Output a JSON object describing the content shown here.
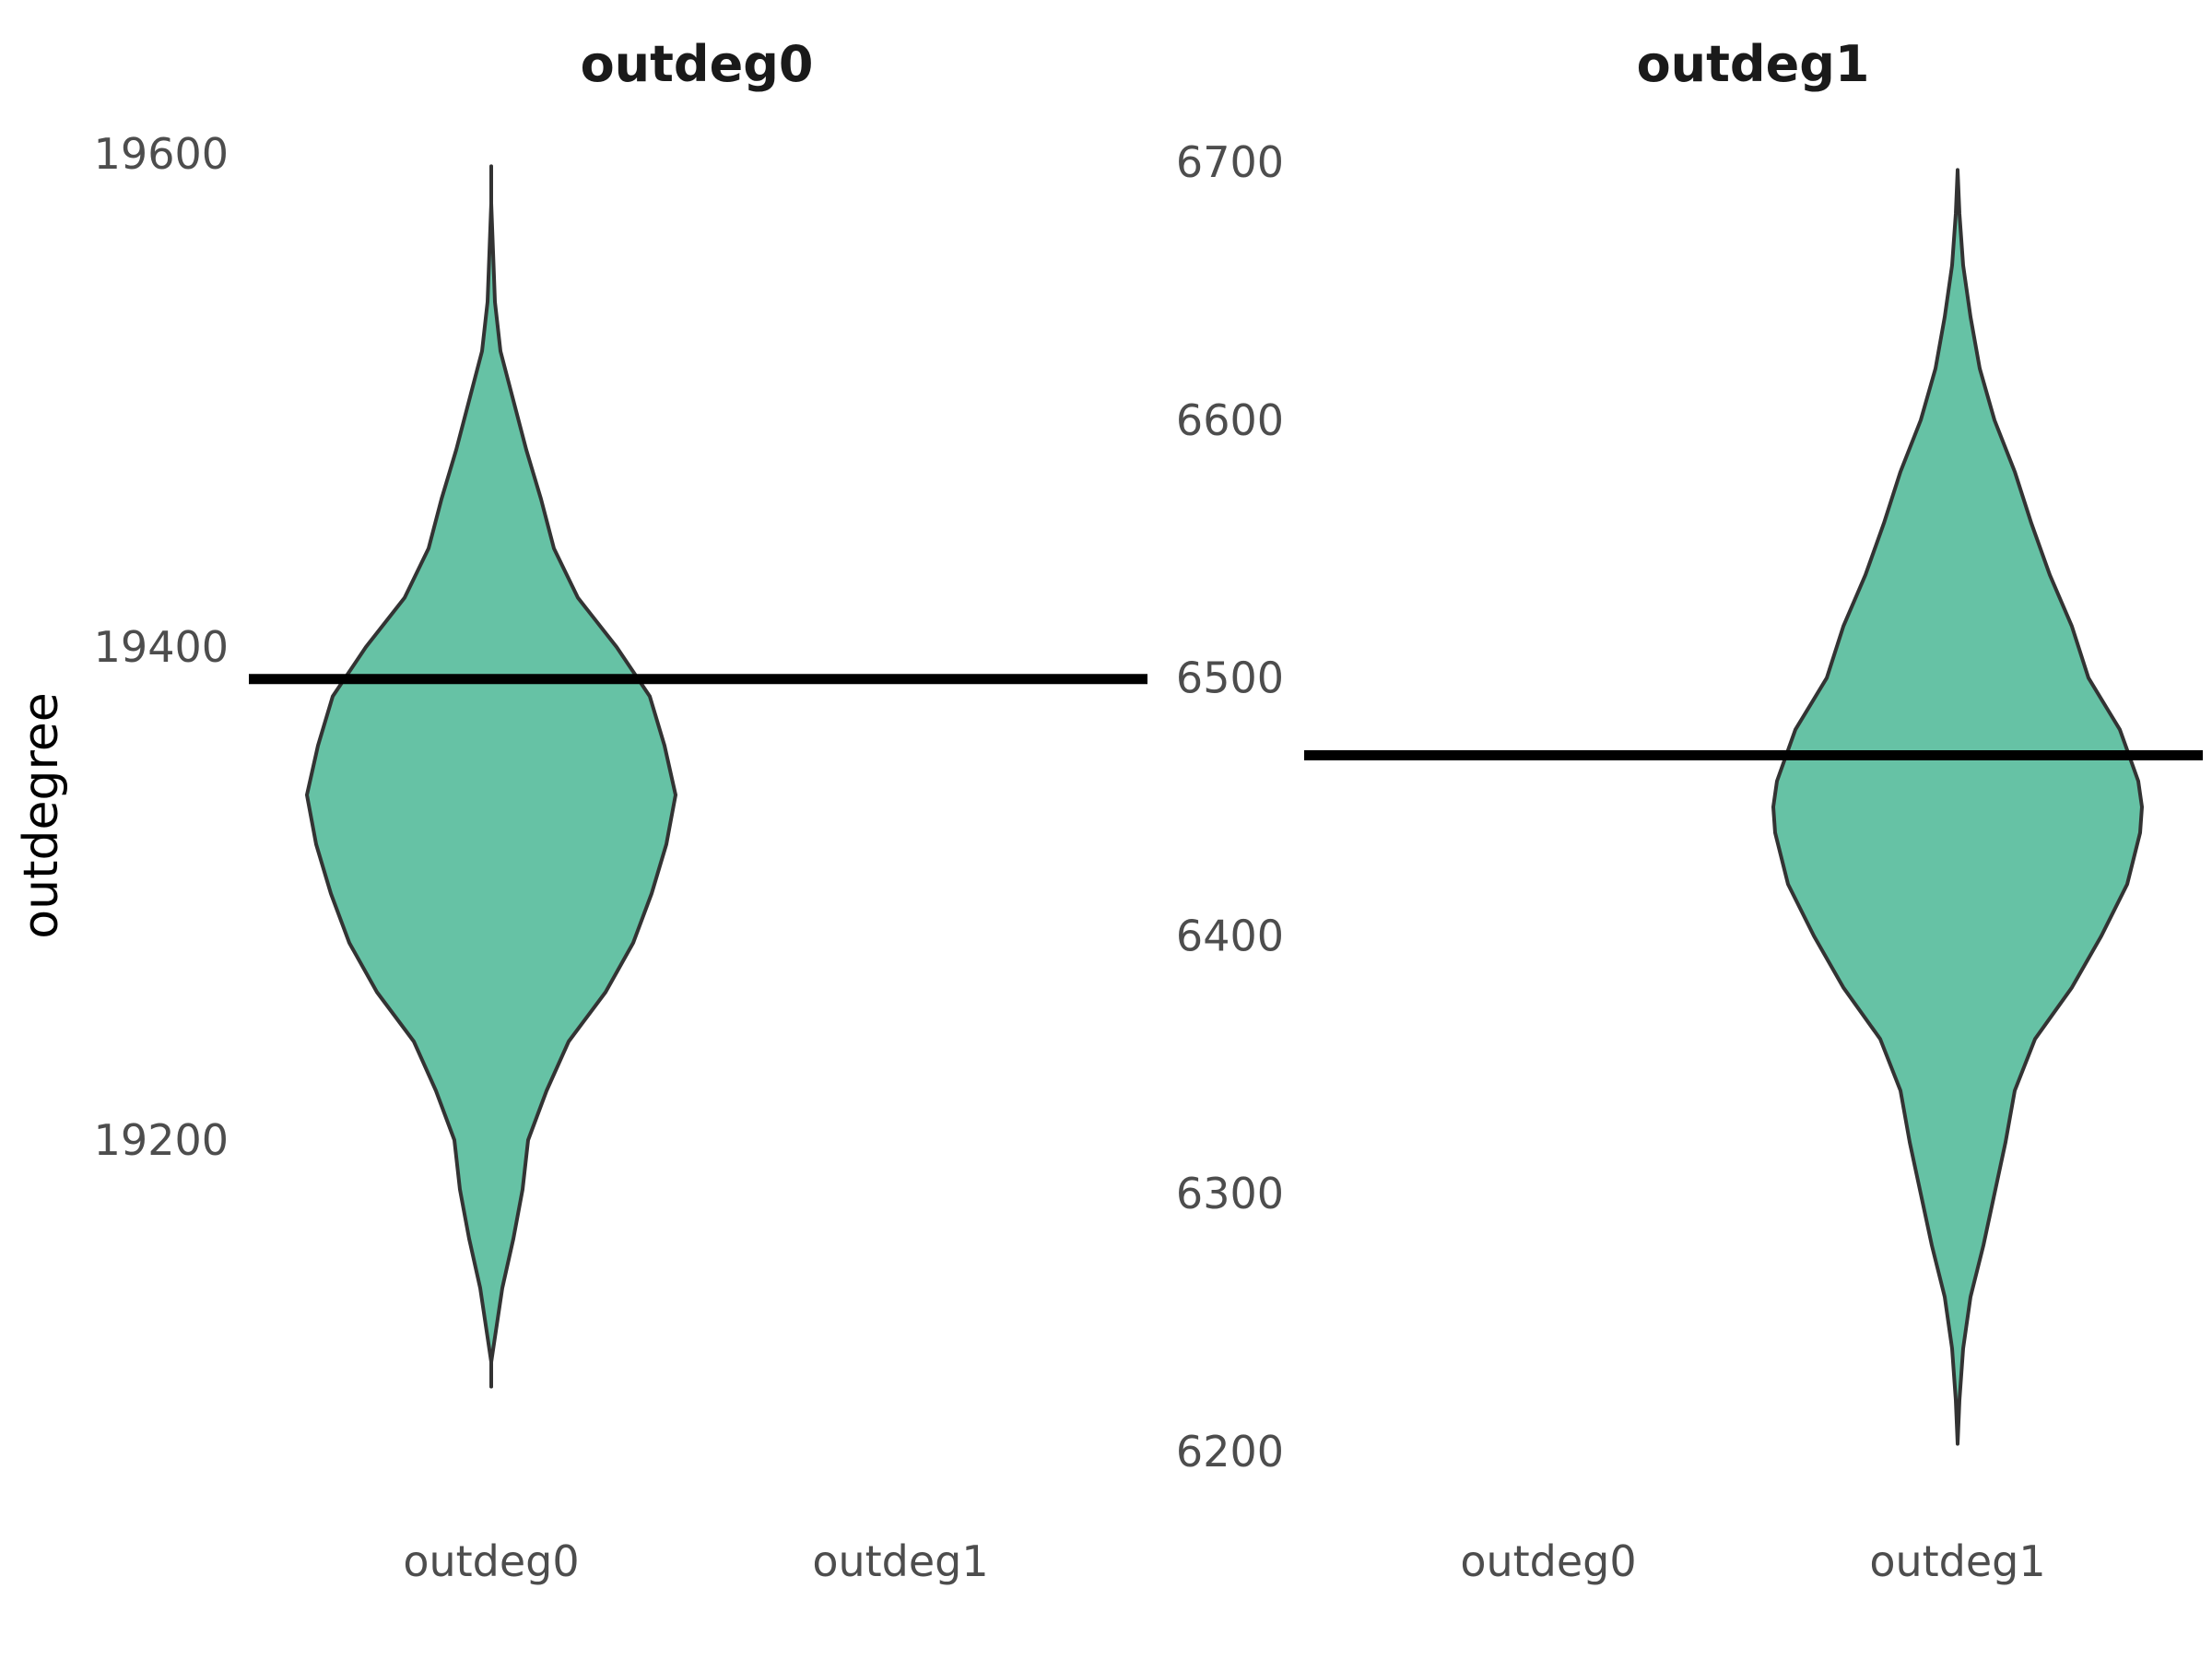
{
  "chart_data": {
    "type": "violin",
    "ylabel": "outdegree",
    "fill_color": "#66c2a5",
    "outline_color": "#333333",
    "reference_line_color": "#000000",
    "panels": [
      {
        "title": "outdeg0",
        "x_categories": [
          "outdeg0",
          "outdeg1"
        ],
        "violin_category": "outdeg0",
        "ylim": [
          19075,
          19610
        ],
        "yticks": [
          19200,
          19400,
          19600
        ],
        "reference_value": 19387,
        "violin_range": [
          19100,
          19595
        ],
        "density_profile": [
          [
            19100,
            0.0
          ],
          [
            19110,
            0.0
          ],
          [
            19120,
            0.02
          ],
          [
            19140,
            0.06
          ],
          [
            19160,
            0.12
          ],
          [
            19180,
            0.17
          ],
          [
            19200,
            0.2
          ],
          [
            19220,
            0.3
          ],
          [
            19240,
            0.42
          ],
          [
            19260,
            0.62
          ],
          [
            19280,
            0.77
          ],
          [
            19300,
            0.87
          ],
          [
            19320,
            0.95
          ],
          [
            19340,
            1.0
          ],
          [
            19360,
            0.94
          ],
          [
            19380,
            0.86
          ],
          [
            19400,
            0.68
          ],
          [
            19420,
            0.47
          ],
          [
            19440,
            0.34
          ],
          [
            19460,
            0.27
          ],
          [
            19480,
            0.19
          ],
          [
            19500,
            0.12
          ],
          [
            19520,
            0.05
          ],
          [
            19540,
            0.02
          ],
          [
            19560,
            0.01
          ],
          [
            19580,
            0.0
          ],
          [
            19595,
            0.0
          ]
        ]
      },
      {
        "title": "outdeg1",
        "x_categories": [
          "outdeg0",
          "outdeg1"
        ],
        "violin_category": "outdeg1",
        "ylim": [
          6185,
          6705
        ],
        "yticks": [
          6200,
          6300,
          6400,
          6500,
          6600,
          6700
        ],
        "reference_value": 6470,
        "violin_range": [
          6203,
          6697
        ],
        "density_profile": [
          [
            6203,
            0.0
          ],
          [
            6220,
            0.01
          ],
          [
            6240,
            0.03
          ],
          [
            6260,
            0.07
          ],
          [
            6280,
            0.14
          ],
          [
            6300,
            0.2
          ],
          [
            6320,
            0.26
          ],
          [
            6340,
            0.31
          ],
          [
            6360,
            0.42
          ],
          [
            6380,
            0.62
          ],
          [
            6400,
            0.78
          ],
          [
            6420,
            0.92
          ],
          [
            6440,
            0.99
          ],
          [
            6450,
            1.0
          ],
          [
            6460,
            0.98
          ],
          [
            6480,
            0.88
          ],
          [
            6500,
            0.71
          ],
          [
            6520,
            0.62
          ],
          [
            6540,
            0.5
          ],
          [
            6560,
            0.4
          ],
          [
            6580,
            0.31
          ],
          [
            6600,
            0.2
          ],
          [
            6620,
            0.12
          ],
          [
            6640,
            0.07
          ],
          [
            6660,
            0.03
          ],
          [
            6680,
            0.01
          ],
          [
            6697,
            0.0
          ]
        ]
      }
    ]
  }
}
